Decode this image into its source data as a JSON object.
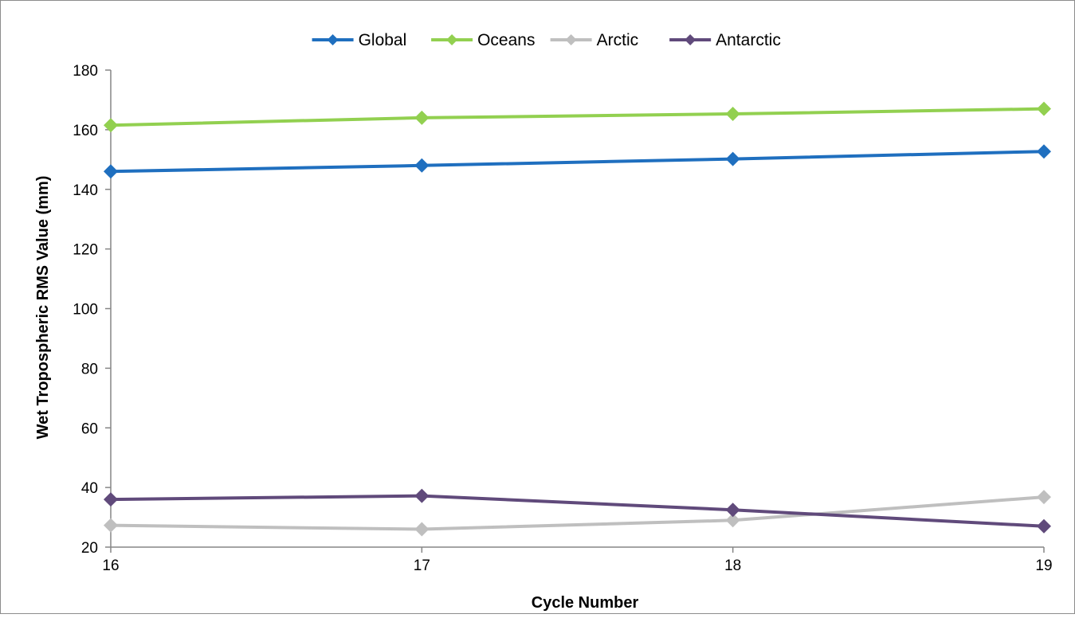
{
  "chart_data": {
    "type": "line",
    "title": "",
    "xlabel": "Cycle Number",
    "ylabel": "Wet Tropospheric RMS Value (mm)",
    "x": [
      16,
      17,
      18,
      19
    ],
    "x_ticks": [
      "16",
      "17",
      "18",
      "19"
    ],
    "xlim": [
      16,
      19
    ],
    "ylim": [
      20,
      180
    ],
    "y_ticks": [
      20,
      40,
      60,
      80,
      100,
      120,
      140,
      160,
      180
    ],
    "y_tick_labels": [
      "20",
      "40",
      "60",
      "80",
      "100",
      "120",
      "140",
      "160",
      "180"
    ],
    "grid": false,
    "legend_position": "top-center",
    "series": [
      {
        "name": "Global",
        "color": "#1f6fbf",
        "marker": "diamond",
        "values": [
          146.0,
          148.0,
          150.2,
          152.7
        ]
      },
      {
        "name": "Oceans",
        "color": "#92d050",
        "marker": "diamond",
        "values": [
          161.5,
          164.0,
          165.3,
          167.0
        ]
      },
      {
        "name": "Arctic",
        "color": "#bfbfbf",
        "marker": "diamond",
        "values": [
          27.3,
          26.0,
          29.0,
          36.8
        ]
      },
      {
        "name": "Antarctic",
        "color": "#604a7b",
        "marker": "diamond",
        "values": [
          36.0,
          37.2,
          32.5,
          27.0
        ]
      }
    ]
  }
}
